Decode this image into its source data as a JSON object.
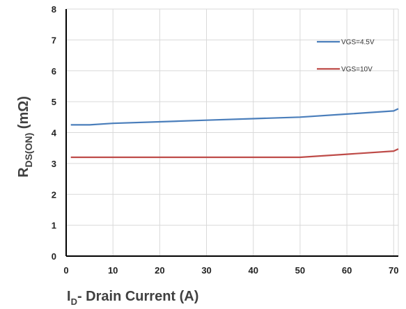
{
  "chart_data": {
    "type": "line",
    "title": "",
    "xlabel": "D- Drain Current (A)",
    "xlabel_main": "I",
    "xlabel_sub": "D",
    "xlabel_rest": "- Drain Current (A)",
    "ylabel_main": "R",
    "ylabel_sub": "DS(ON)",
    "ylabel_rest": " (mΩ)",
    "xlim": [
      0,
      71
    ],
    "ylim": [
      0,
      8
    ],
    "xticks": [
      "0",
      "10",
      "20",
      "30",
      "40",
      "50",
      "60",
      "70"
    ],
    "yticks": [
      "0",
      "1",
      "2",
      "3",
      "4",
      "5",
      "6",
      "7",
      "8"
    ],
    "grid": true,
    "legend_position": "right",
    "series": [
      {
        "name": "VGS=4.5V",
        "color": "#4a7ebb",
        "x": [
          1,
          5,
          10,
          20,
          30,
          40,
          50,
          60,
          70,
          71
        ],
        "y": [
          4.25,
          4.25,
          4.3,
          4.35,
          4.4,
          4.45,
          4.5,
          4.6,
          4.7,
          4.77
        ]
      },
      {
        "name": "VGS=10V",
        "color": "#be4b48",
        "x": [
          1,
          10,
          20,
          30,
          40,
          50,
          60,
          70,
          71
        ],
        "y": [
          3.2,
          3.2,
          3.2,
          3.2,
          3.2,
          3.2,
          3.3,
          3.4,
          3.47
        ]
      }
    ]
  }
}
